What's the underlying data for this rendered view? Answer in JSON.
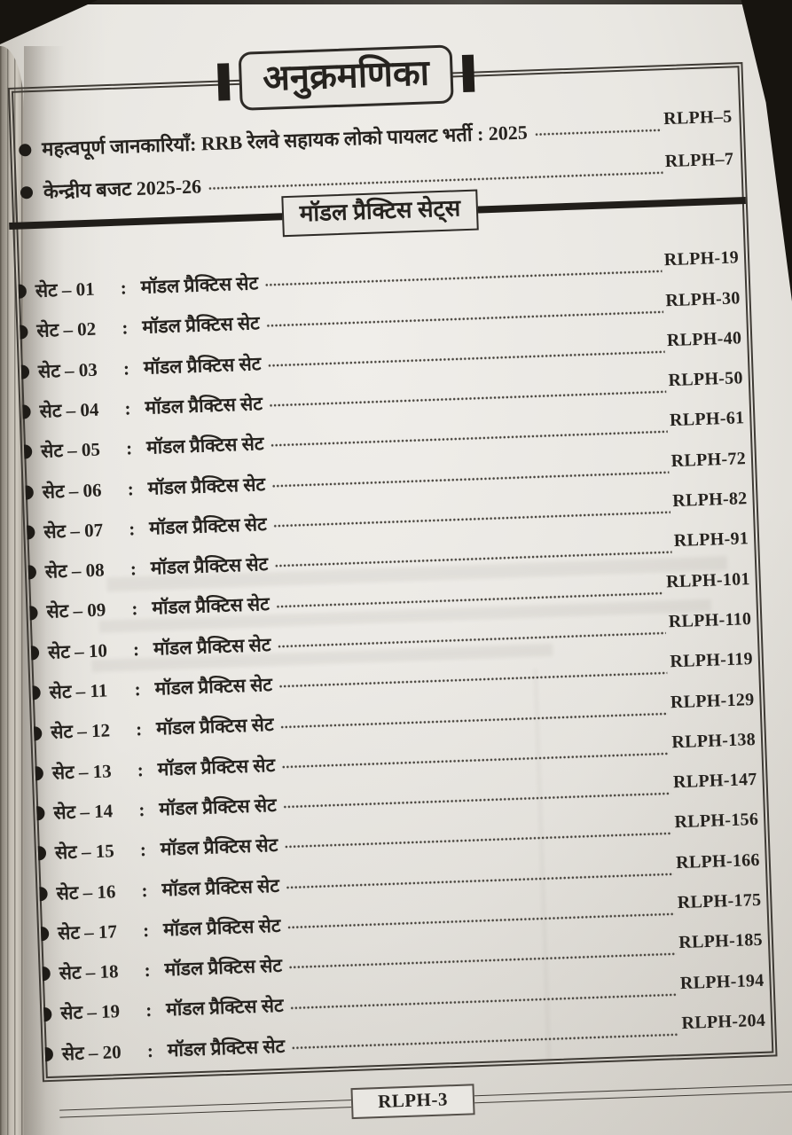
{
  "page": {
    "title": "अनुक्रमणिका",
    "footer_label": "RLPH-3"
  },
  "intro_items": [
    {
      "label": "महत्वपूर्ण जानकारियाँ: RRB रेलवे सहायक लोको पायलट भर्ती : 2025",
      "page": "RLPH–5"
    },
    {
      "label": "केन्द्रीय बजट 2025-26",
      "page": "RLPH–7"
    }
  ],
  "section": {
    "title": "मॉडल प्रैक्टिस सेट्स",
    "entry_title": "मॉडल प्रैक्टिस सेट",
    "separator": ":"
  },
  "sets": [
    {
      "label": "सेट – 01",
      "page": "RLPH-19"
    },
    {
      "label": "सेट – 02",
      "page": "RLPH-30"
    },
    {
      "label": "सेट – 03",
      "page": "RLPH-40"
    },
    {
      "label": "सेट – 04",
      "page": "RLPH-50"
    },
    {
      "label": "सेट – 05",
      "page": "RLPH-61"
    },
    {
      "label": "सेट – 06",
      "page": "RLPH-72"
    },
    {
      "label": "सेट – 07",
      "page": "RLPH-82"
    },
    {
      "label": "सेट – 08",
      "page": "RLPH-91"
    },
    {
      "label": "सेट – 09",
      "page": "RLPH-101"
    },
    {
      "label": "सेट – 10",
      "page": "RLPH-110"
    },
    {
      "label": "सेट – 11",
      "page": "RLPH-119"
    },
    {
      "label": "सेट – 12",
      "page": "RLPH-129"
    },
    {
      "label": "सेट – 13",
      "page": "RLPH-138"
    },
    {
      "label": "सेट – 14",
      "page": "RLPH-147"
    },
    {
      "label": "सेट – 15",
      "page": "RLPH-156"
    },
    {
      "label": "सेट – 16",
      "page": "RLPH-166"
    },
    {
      "label": "सेट – 17",
      "page": "RLPH-175"
    },
    {
      "label": "सेट – 18",
      "page": "RLPH-185"
    },
    {
      "label": "सेट – 19",
      "page": "RLPH-194"
    },
    {
      "label": "सेट – 20",
      "page": "RLPH-204"
    }
  ],
  "colors": {
    "paper": "#e9e7e2",
    "ink": "#26231f",
    "line": "#3f3b35",
    "dark": "#17140f"
  }
}
